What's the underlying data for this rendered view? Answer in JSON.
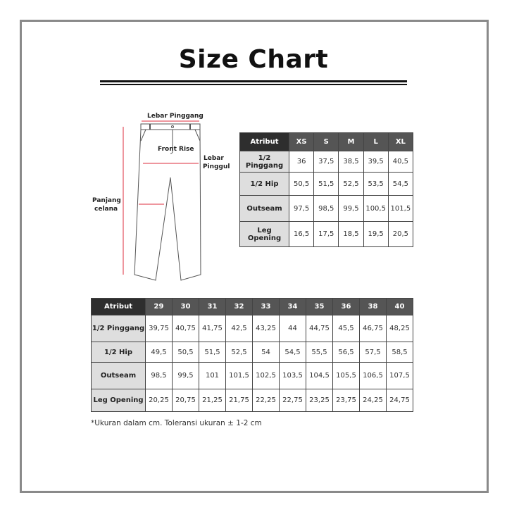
{
  "title": "Size Chart",
  "diagram": {
    "waist": "Lebar Pinggang",
    "front_rise": "Front Rise",
    "hip_1": "Lebar",
    "hip_2": "Pinggul",
    "length_1": "Panjang",
    "length_2": "celana",
    "accent": "#e8737f"
  },
  "table_letter": {
    "headers": [
      "Atribut",
      "XS",
      "S",
      "M",
      "L",
      "XL"
    ],
    "rows": [
      {
        "label": "1/2 Pinggang",
        "values": [
          "36",
          "37,5",
          "38,5",
          "39,5",
          "40,5"
        ]
      },
      {
        "label": "1/2 Hip",
        "values": [
          "50,5",
          "51,5",
          "52,5",
          "53,5",
          "54,5"
        ]
      },
      {
        "label": "Outseam",
        "values": [
          "97,5",
          "98,5",
          "99,5",
          "100,5",
          "101,5"
        ]
      },
      {
        "label": "Leg Opening",
        "values": [
          "16,5",
          "17,5",
          "18,5",
          "19,5",
          "20,5"
        ]
      }
    ]
  },
  "table_number": {
    "headers": [
      "Atribut",
      "29",
      "30",
      "31",
      "32",
      "33",
      "34",
      "35",
      "36",
      "38",
      "40"
    ],
    "rows": [
      {
        "label": "1/2 Pinggang",
        "values": [
          "39,75",
          "40,75",
          "41,75",
          "42,5",
          "43,25",
          "44",
          "44,75",
          "45,5",
          "46,75",
          "48,25"
        ]
      },
      {
        "label": "1/2 Hip",
        "values": [
          "49,5",
          "50,5",
          "51,5",
          "52,5",
          "54",
          "54,5",
          "55,5",
          "56,5",
          "57,5",
          "58,5"
        ]
      },
      {
        "label": "Outseam",
        "values": [
          "98,5",
          "99,5",
          "101",
          "101,5",
          "102,5",
          "103,5",
          "104,5",
          "105,5",
          "106,5",
          "107,5"
        ]
      },
      {
        "label": "Leg Opening",
        "values": [
          "20,25",
          "20,75",
          "21,25",
          "21,75",
          "22,25",
          "22,75",
          "23,25",
          "23,75",
          "24,25",
          "24,75"
        ]
      }
    ]
  },
  "note": "*Ukuran dalam cm. Toleransi ukuran ± 1-2 cm"
}
